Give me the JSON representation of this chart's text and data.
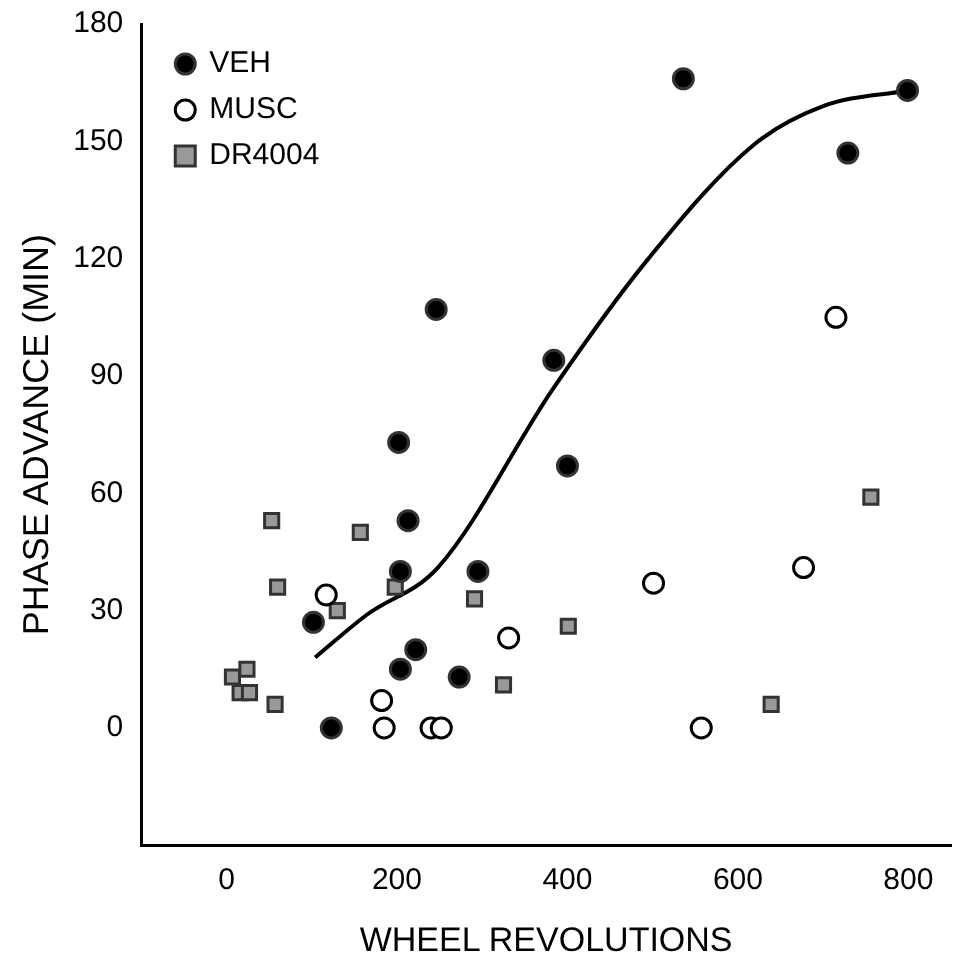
{
  "chart_data": {
    "type": "scatter",
    "xlabel": "WHEEL REVOLUTIONS",
    "ylabel": "PHASE ADVANCE (MIN)",
    "xlim": [
      -100,
      850
    ],
    "xticks": [
      0,
      200,
      400,
      600,
      800
    ],
    "ylim": [
      -30,
      180
    ],
    "yticks": [
      0,
      30,
      60,
      90,
      120,
      150,
      180
    ],
    "grid": false,
    "legend": "top left",
    "series": [
      {
        "name": "VEH",
        "color": "#000000",
        "marker": "circle",
        "x": [
          536,
          799,
          729,
          246,
          384,
          202,
          400,
          213,
          204,
          295,
          102,
          222,
          204,
          273,
          123
        ],
        "values": [
          166,
          163,
          147,
          107,
          94,
          73,
          67,
          53,
          40,
          40,
          27,
          20,
          15,
          13,
          0
        ]
      },
      {
        "name": "MUSC",
        "color": "#ffffff",
        "marker": "circle",
        "x": [
          715,
          501,
          677,
          117,
          331,
          182,
          185,
          240,
          252,
          557
        ],
        "values": [
          105,
          37,
          41,
          34,
          23,
          7,
          0,
          0,
          0,
          0
        ]
      },
      {
        "name": "DR4004",
        "color": "#999999",
        "marker": "square",
        "x": [
          53,
          157,
          756,
          60,
          198,
          291,
          130,
          401,
          325,
          639,
          57,
          24,
          7,
          16,
          27
        ],
        "values": [
          53,
          50,
          59,
          36,
          36,
          33,
          30,
          26,
          11,
          6,
          6,
          15,
          13,
          9,
          9
        ]
      },
      {
        "type": "line",
        "color": "#000000",
        "marker": "none",
        "x": [
          104,
          165,
          248,
          384,
          495,
          618,
          700,
          799
        ],
        "values": [
          18,
          29,
          41,
          87,
          120,
          149,
          159,
          163
        ]
      }
    ]
  }
}
